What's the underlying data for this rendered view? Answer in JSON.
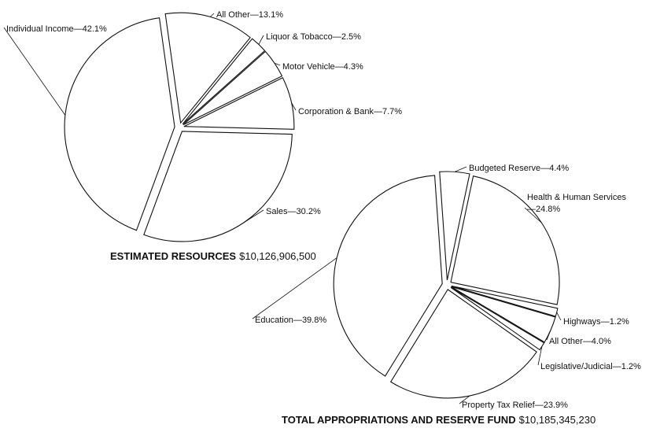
{
  "chart_data": [
    {
      "type": "pie",
      "title": "ESTIMATED RESOURCES",
      "subtitle": "$10,126,906,500",
      "categories": [
        "All Other",
        "Liquor & Tobacco",
        "Motor Vehicle",
        "Corporation & Bank",
        "Sales",
        "Individual Income"
      ],
      "values": [
        13.1,
        2.5,
        4.3,
        7.7,
        30.2,
        42.1
      ],
      "value_labels": [
        "—13.1%",
        "—2.5%",
        "—4.3%",
        "—7.7%",
        "—30.2%",
        "—42.1%"
      ],
      "color": "#ffffff"
    },
    {
      "type": "pie",
      "title": "TOTAL APPROPRIATIONS AND RESERVE FUND",
      "subtitle": "$10,185,345,230",
      "categories": [
        "Budgeted Reserve",
        "Health & Human Services",
        "Highways",
        "All Other",
        "Legislative/Judicial",
        "Property Tax Relief",
        "Education"
      ],
      "values": [
        4.4,
        24.8,
        1.2,
        4.0,
        1.2,
        23.9,
        39.8
      ],
      "value_labels": [
        "—4.4%",
        "—24.8%",
        "—1.2%",
        "—4.0%",
        "—1.2%",
        "—23.9%",
        "—39.8%"
      ],
      "color": "#ffffff"
    }
  ]
}
